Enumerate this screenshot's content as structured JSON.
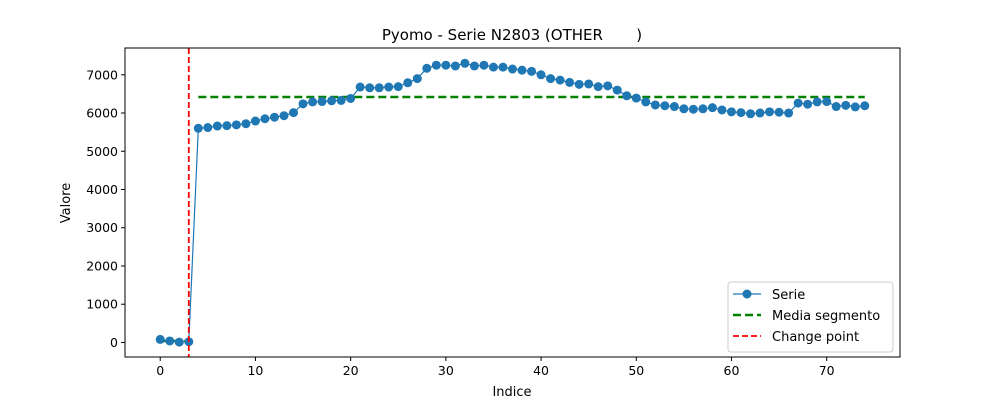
{
  "chart_data": {
    "type": "line",
    "title": "Pyomo - Serie N2803 (OTHER       )",
    "xlabel": "Indice",
    "ylabel": "Valore",
    "xlim": [
      -3.7,
      77.7
    ],
    "ylim": [
      -380,
      7700
    ],
    "xticks": [
      0,
      10,
      20,
      30,
      40,
      50,
      60,
      70
    ],
    "yticks": [
      0,
      1000,
      2000,
      3000,
      4000,
      5000,
      6000,
      7000
    ],
    "grid": false,
    "legend_position": "lower-right",
    "series": [
      {
        "name": "Serie",
        "color": "#1f77b4",
        "marker": "circle",
        "x": [
          0,
          1,
          2,
          3,
          4,
          5,
          6,
          7,
          8,
          9,
          10,
          11,
          12,
          13,
          14,
          15,
          16,
          17,
          18,
          19,
          20,
          21,
          22,
          23,
          24,
          25,
          26,
          27,
          28,
          29,
          30,
          31,
          32,
          33,
          34,
          35,
          36,
          37,
          38,
          39,
          40,
          41,
          42,
          43,
          44,
          45,
          46,
          47,
          48,
          49,
          50,
          51,
          52,
          53,
          54,
          55,
          56,
          57,
          58,
          59,
          60,
          61,
          62,
          63,
          64,
          65,
          66,
          67,
          68,
          69,
          70,
          71,
          72,
          73,
          74
        ],
        "y": [
          80,
          40,
          10,
          20,
          5600,
          5620,
          5660,
          5670,
          5690,
          5720,
          5790,
          5850,
          5890,
          5930,
          6010,
          6240,
          6290,
          6300,
          6320,
          6330,
          6380,
          6680,
          6660,
          6660,
          6680,
          6690,
          6790,
          6900,
          7170,
          7250,
          7250,
          7230,
          7300,
          7230,
          7250,
          7200,
          7200,
          7150,
          7120,
          7090,
          7000,
          6900,
          6860,
          6800,
          6750,
          6760,
          6690,
          6710,
          6600,
          6450,
          6390,
          6290,
          6210,
          6190,
          6170,
          6110,
          6100,
          6110,
          6140,
          6080,
          6030,
          6010,
          5980,
          6000,
          6030,
          6020,
          6000,
          6260,
          6230,
          6290,
          6300,
          6170,
          6200,
          6160,
          6190
        ]
      },
      {
        "name": "Media segmento",
        "color": "#008000",
        "style": "dashed",
        "segments": [
          {
            "x": [
              0,
              3
            ],
            "y": [
              40,
              40
            ]
          },
          {
            "x": [
              4,
              74
            ],
            "y": [
              6420,
              6420
            ]
          }
        ]
      },
      {
        "name": "Change point",
        "color": "#ff0000",
        "style": "dashed",
        "x_value": 3
      }
    ]
  }
}
